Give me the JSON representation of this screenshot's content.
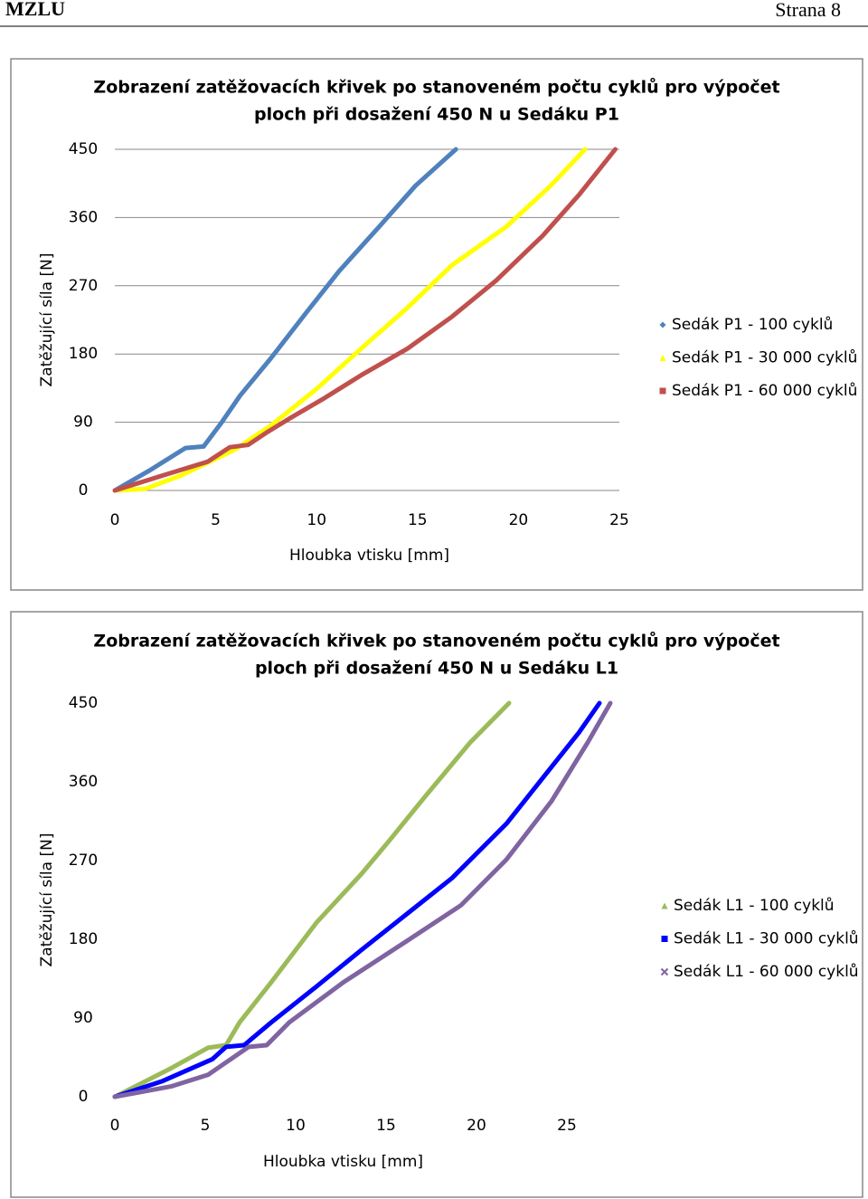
{
  "header": {
    "left": "MZLU",
    "right": "Strana 8"
  },
  "chart_data": [
    {
      "type": "line",
      "title": [
        "Zobrazení zatěžovacích křivek po stanoveném počtu cyklů pro výpočet",
        "ploch při dosažení 450 N u Sedáku P1"
      ],
      "xlabel": "Hloubka vtisku [mm]",
      "ylabel": "Zatěžující síla [N]",
      "xlim": [
        0,
        25
      ],
      "xticks": [
        0,
        5,
        10,
        15,
        20,
        25
      ],
      "ylim": [
        0,
        450
      ],
      "yticks": [
        0,
        90,
        180,
        270,
        360,
        450
      ],
      "grid": true,
      "series": [
        {
          "name": "Sedák P1 - 100 cyklů",
          "color": "#4f81bd",
          "marker": "diamond",
          "x": [
            0,
            1.7,
            3.5,
            4.4,
            5.3,
            6.2,
            7.75,
            9.5,
            11.1,
            13.1,
            14.9,
            16.9
          ],
          "values": [
            0,
            26,
            56,
            58,
            90,
            125,
            175,
            235,
            289,
            348,
            402,
            450
          ]
        },
        {
          "name": "Sedák P1 - 30 000 cyklů",
          "color": "#ffff00",
          "marker": "triangle",
          "x": [
            0,
            1.5,
            3.3,
            5.95,
            7.75,
            10,
            12.2,
            14.5,
            16.7,
            19.4,
            21.6,
            23.3
          ],
          "values": [
            0,
            2,
            20,
            54,
            86,
            134,
            187,
            241,
            297,
            348,
            402,
            450
          ]
        },
        {
          "name": "Sedák P1 - 60 000 cyklů",
          "color": "#c0504d",
          "marker": "square",
          "x": [
            0,
            2.4,
            4.6,
            5.7,
            6.6,
            7.5,
            8.6,
            10.4,
            12.2,
            14.5,
            16.7,
            18.9,
            21.2,
            23,
            24.8
          ],
          "values": [
            0,
            20,
            38,
            57,
            60,
            76,
            94,
            122,
            152,
            187,
            229,
            277,
            336,
            390,
            450
          ]
        }
      ]
    },
    {
      "type": "line",
      "title": [
        "Zobrazení zatěžovacích křivek po stanoveném počtu cyklů pro výpočet",
        "ploch při dosažení 450 N u Sedáku L1"
      ],
      "xlabel": "Hloubka vtisku [mm]",
      "ylabel": "Zatěžující síla [N]",
      "xlim": [
        0,
        25
      ],
      "xticks": [
        0,
        5,
        10,
        15,
        20,
        25
      ],
      "ylim": [
        0,
        450
      ],
      "yticks": [
        0,
        90,
        180,
        270,
        360,
        450
      ],
      "grid": false,
      "series": [
        {
          "name": "Sedák L1 - 100 cyklů",
          "color": "#9bbb59",
          "marker": "triangle",
          "x": [
            0,
            3.15,
            5.15,
            6.15,
            6.9,
            8.65,
            11.15,
            13.65,
            15.15,
            17.15,
            19.65,
            21.8
          ],
          "values": [
            0,
            33,
            56,
            59,
            85,
            131,
            199,
            255,
            292,
            343,
            405,
            450
          ]
        },
        {
          "name": "Sedák L1 - 30 000 cyklů",
          "color": "#0000ff",
          "marker": "square",
          "x": [
            0,
            2.65,
            5.4,
            6.15,
            7.15,
            8.65,
            11.15,
            13.65,
            16.15,
            18.65,
            21.65,
            23.65,
            25.65,
            26.8
          ],
          "values": [
            0,
            18,
            43,
            57,
            59,
            85,
            126,
            168,
            209,
            250,
            312,
            364,
            416,
            450
          ]
        },
        {
          "name": "Sedák L1 - 60 000 cyklů",
          "color": "#8064a2",
          "marker": "x",
          "x": [
            0,
            3.15,
            5.15,
            7.4,
            8.4,
            9.65,
            12.65,
            16.15,
            19.15,
            21.65,
            24.15,
            26.15,
            27.4
          ],
          "values": [
            0,
            12,
            25,
            57,
            59,
            85,
            131,
            178,
            219,
            271,
            338,
            405,
            450
          ]
        }
      ]
    }
  ]
}
